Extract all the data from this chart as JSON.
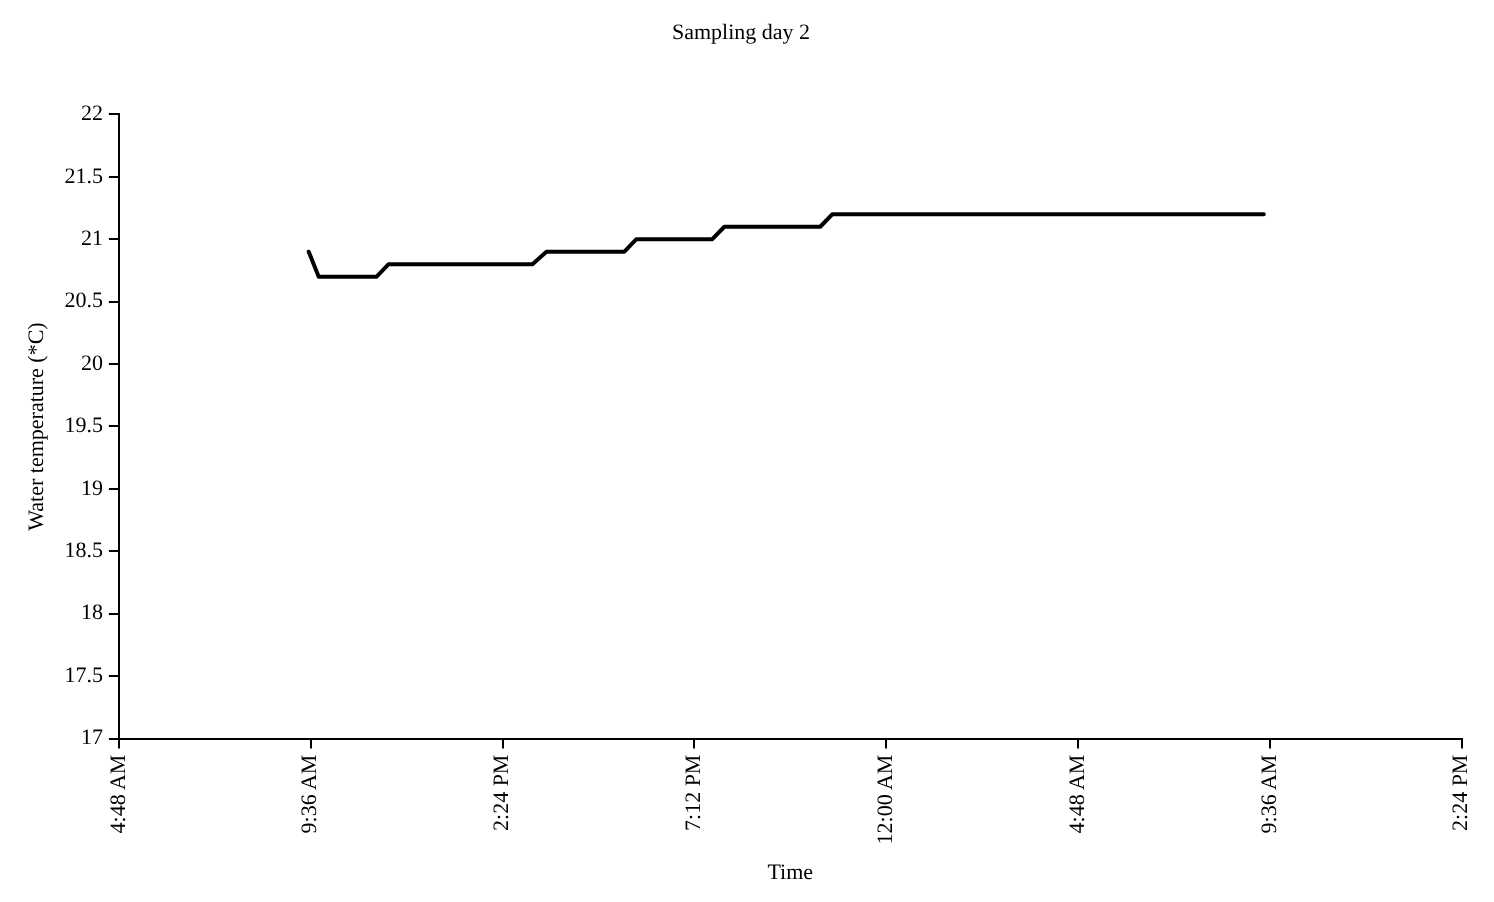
{
  "chart_data": {
    "type": "line",
    "title": "Sampling day 2",
    "xlabel": "Time",
    "ylabel": "Water temperature (*C)",
    "xlim": [
      "2000-01-01T04:48",
      "2000-01-02T14:24"
    ],
    "xticks": [
      {
        "value": "2000-01-01T04:48",
        "label": "4:48 AM"
      },
      {
        "value": "2000-01-01T09:36",
        "label": "9:36 AM"
      },
      {
        "value": "2000-01-01T14:24",
        "label": "2:24 PM"
      },
      {
        "value": "2000-01-01T19:12",
        "label": "7:12 PM"
      },
      {
        "value": "2000-01-02T00:00",
        "label": "12:00 AM"
      },
      {
        "value": "2000-01-02T04:48",
        "label": "4:48 AM"
      },
      {
        "value": "2000-01-02T09:36",
        "label": "9:36 AM"
      },
      {
        "value": "2000-01-02T14:24",
        "label": "2:24 PM"
      }
    ],
    "ylim": [
      17,
      22
    ],
    "yticks": [
      17,
      17.5,
      18,
      18.5,
      19,
      19.5,
      20,
      20.5,
      21,
      21.5,
      22
    ],
    "grid": false,
    "legend": false,
    "marker": "none",
    "line_style": "solid",
    "series": [
      {
        "color": "#000000",
        "x": [
          "2000-01-01T09:33",
          "2000-01-01T09:48",
          "2000-01-01T11:15",
          "2000-01-01T11:33",
          "2000-01-01T15:09",
          "2000-01-01T15:30",
          "2000-01-01T17:27",
          "2000-01-01T17:45",
          "2000-01-01T19:39",
          "2000-01-01T19:57",
          "2000-01-01T22:21",
          "2000-01-01T22:39",
          "2000-01-02T09:27"
        ],
        "values": [
          20.9,
          20.7,
          20.7,
          20.8,
          20.8,
          20.9,
          20.9,
          21.0,
          21.0,
          21.1,
          21.1,
          21.2,
          21.2
        ]
      }
    ]
  }
}
